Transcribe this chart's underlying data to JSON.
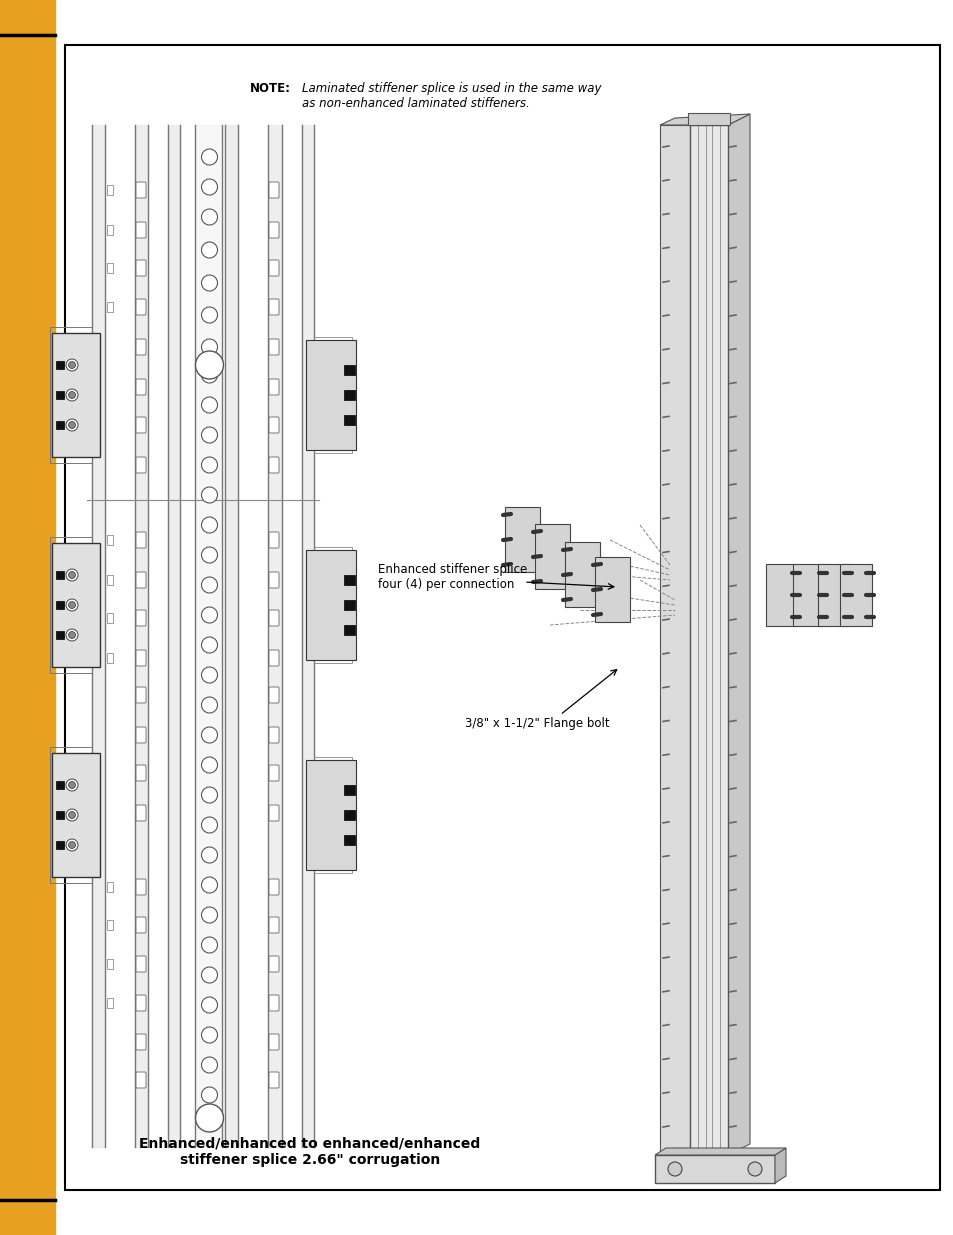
{
  "page_bg": "#ffffff",
  "sidebar_color": "#E8A020",
  "note_bold": "NOTE:",
  "note_italic": " Laminated stiffener splice is used in the same way\nas non-enhanced laminated stiffeners.",
  "label1": "Enhanced stiffener splice\nfour (4) per connection",
  "label2": "3/8\" x 1-1/2\" Flange bolt",
  "caption": "Enhanced/enhanced to enhanced/enhanced\nstiffener splice 2.66\" corrugation"
}
